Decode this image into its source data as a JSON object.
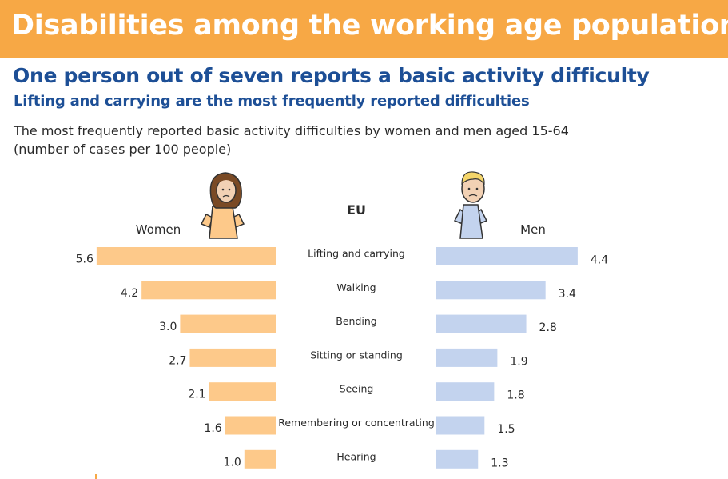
{
  "header": {
    "title": "Disabilities among the working age population"
  },
  "headline": "One person out of seven reports a basic activity difficulty",
  "subheadline": "Lifting and carrying are the most frequently reported difficulties",
  "description": {
    "line1": "The most frequently reported basic activity difficulties by women and men aged 15-64",
    "line2": "(number of cases per 100 people)"
  },
  "colors": {
    "banner": "#f7a845",
    "heading": "#1d4f96",
    "women_bar": "#fdc98a",
    "men_bar": "#c3d3ee"
  },
  "chart_data": {
    "type": "bar",
    "title": "EU",
    "unit": "number of cases per 100 people",
    "categories": [
      "Lifting and carrying",
      "Walking",
      "Bending",
      "Sitting or standing",
      "Seeing",
      "Remembering or concentrating",
      "Hearing"
    ],
    "series": [
      {
        "name": "Women",
        "values_text": [
          "5.6",
          "4.2",
          "3.0",
          "2.7",
          "2.1",
          "1.6",
          "1.0"
        ],
        "values": [
          5.6,
          4.2,
          3.0,
          2.7,
          2.1,
          1.6,
          1.0
        ]
      },
      {
        "name": "Men",
        "values_text": [
          "4.4",
          "3.4",
          "2.8",
          "1.9",
          "1.8",
          "1.5",
          "1.3"
        ],
        "values": [
          4.4,
          3.4,
          2.8,
          1.9,
          1.8,
          1.5,
          1.3
        ]
      }
    ]
  }
}
